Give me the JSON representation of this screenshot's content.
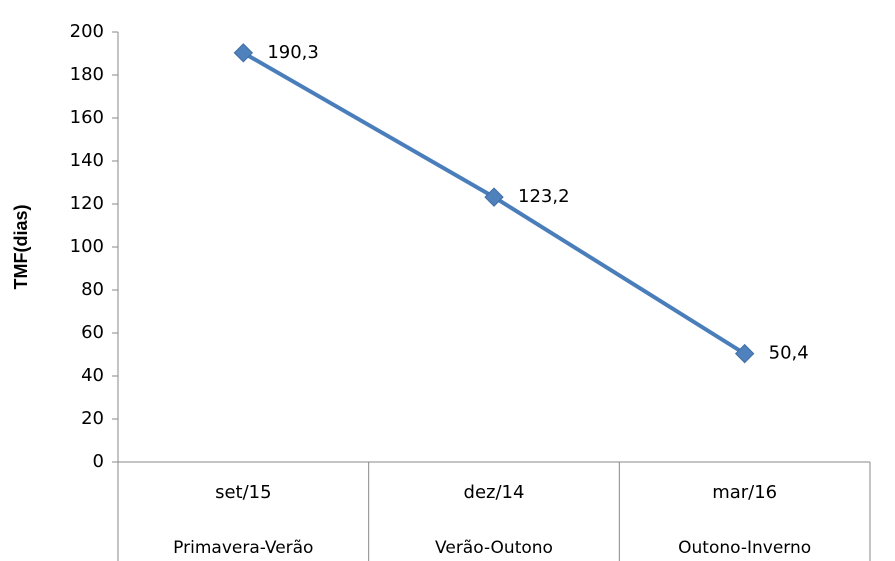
{
  "chart_data": {
    "type": "line",
    "y_label": "TMF(dias)",
    "categories": [
      "set/15",
      "dez/14",
      "mar/16"
    ],
    "category_groups": [
      "Primavera-Verão",
      "Verão-Outono",
      "Outono-Inverno"
    ],
    "series": [
      {
        "name": "TMF",
        "color": "#4a7ebb",
        "values": [
          190.3,
          123.2,
          50.4
        ],
        "value_labels": [
          "190,3",
          "123,2",
          "50,4"
        ]
      }
    ],
    "ylim": [
      0,
      200
    ],
    "yticks": [
      0,
      20,
      40,
      60,
      80,
      100,
      120,
      140,
      160,
      180,
      200
    ],
    "grid": false
  }
}
